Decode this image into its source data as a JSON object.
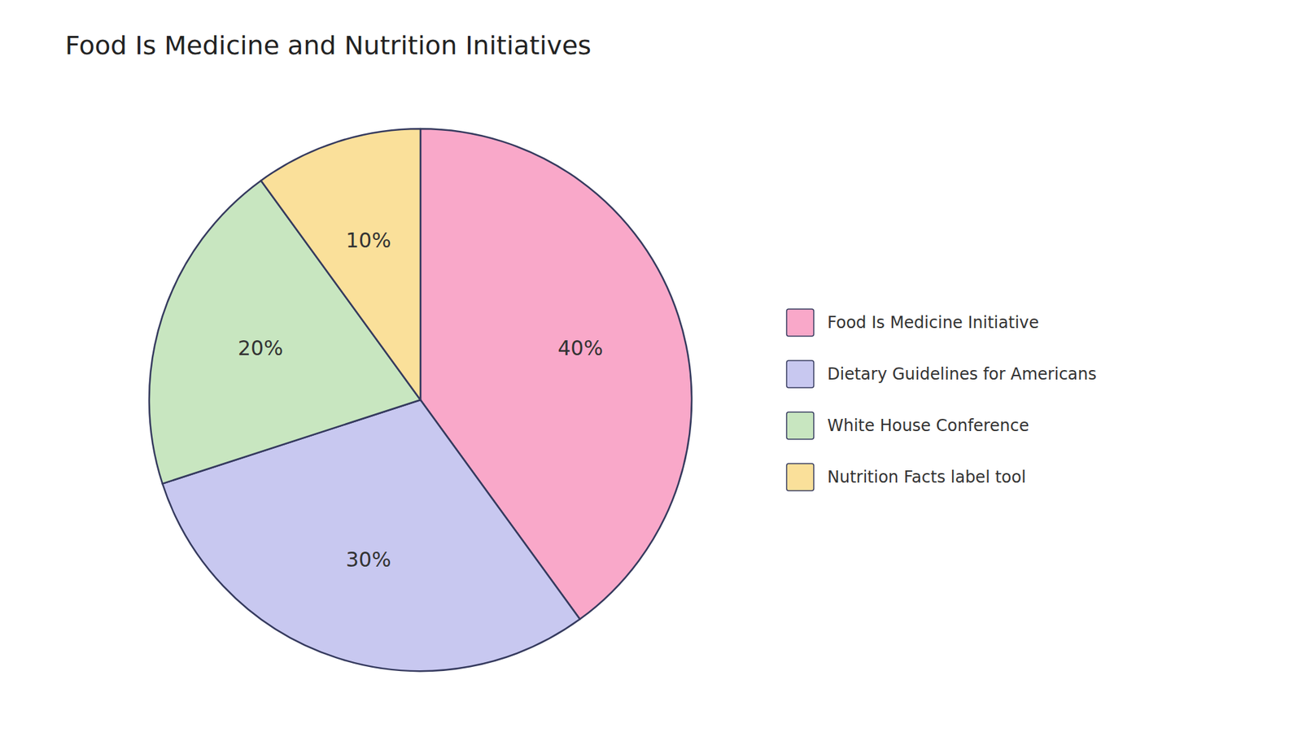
{
  "chart_data": {
    "type": "pie",
    "title": "Food Is Medicine and Nutrition Initiatives",
    "categories": [
      "Food Is Medicine Initiative",
      "Dietary Guidelines for Americans",
      "White House Conference",
      "Nutrition Facts label tool"
    ],
    "values": [
      40,
      30,
      20,
      10
    ],
    "value_labels": [
      "40%",
      "30%",
      "20%",
      "10%"
    ],
    "colors": [
      "#F9A8C9",
      "#C8C8F0",
      "#C8E6C0",
      "#FAE09A"
    ],
    "data_labels": true,
    "legend": "right"
  }
}
